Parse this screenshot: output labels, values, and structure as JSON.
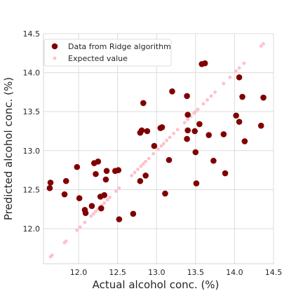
{
  "chart_data": {
    "type": "scatter",
    "title": "",
    "xlabel": "Actual alcohol conc. (%)",
    "ylabel": "Predicted alcohol conc. (%)",
    "xlim": [
      11.55,
      14.5
    ],
    "ylim": [
      11.55,
      14.5
    ],
    "xticks": [
      12.0,
      12.5,
      13.0,
      13.5,
      14.0,
      14.5
    ],
    "yticks": [
      12.0,
      12.5,
      13.0,
      13.5,
      14.0,
      14.5
    ],
    "xtick_labels": [
      "12.0",
      "12.5",
      "13.0",
      "13.5",
      "14.0",
      "14.5"
    ],
    "ytick_labels": [
      "12.0",
      "12.5",
      "13.0",
      "13.5",
      "14.0",
      "14.5"
    ],
    "grid": true,
    "legend_position": "top-left",
    "series": [
      {
        "name": "Data from Ridge algorithm",
        "color": "#800000",
        "marker": "circle-large",
        "points": [
          [
            11.63,
            12.52
          ],
          [
            11.64,
            12.59
          ],
          [
            11.82,
            12.44
          ],
          [
            11.84,
            12.61
          ],
          [
            11.98,
            12.79
          ],
          [
            12.01,
            12.39
          ],
          [
            12.08,
            12.24
          ],
          [
            12.09,
            12.2
          ],
          [
            12.17,
            12.29
          ],
          [
            12.2,
            12.84
          ],
          [
            12.22,
            12.7
          ],
          [
            12.25,
            12.86
          ],
          [
            12.28,
            12.41
          ],
          [
            12.29,
            12.26
          ],
          [
            12.33,
            12.43
          ],
          [
            12.35,
            12.63
          ],
          [
            12.36,
            12.74
          ],
          [
            12.47,
            12.74
          ],
          [
            12.51,
            12.75
          ],
          [
            12.52,
            12.12
          ],
          [
            12.7,
            12.19
          ],
          [
            12.79,
            12.61
          ],
          [
            12.79,
            13.23
          ],
          [
            12.81,
            13.26
          ],
          [
            12.83,
            13.61
          ],
          [
            12.86,
            12.68
          ],
          [
            12.88,
            13.25
          ],
          [
            12.97,
            13.06
          ],
          [
            13.05,
            13.29
          ],
          [
            13.07,
            13.3
          ],
          [
            13.11,
            12.45
          ],
          [
            13.16,
            12.88
          ],
          [
            13.2,
            13.76
          ],
          [
            13.39,
            13.7
          ],
          [
            13.39,
            13.15
          ],
          [
            13.4,
            13.46
          ],
          [
            13.4,
            13.26
          ],
          [
            13.49,
            13.25
          ],
          [
            13.5,
            12.98
          ],
          [
            13.51,
            12.58
          ],
          [
            13.55,
            13.34
          ],
          [
            13.58,
            14.11
          ],
          [
            13.62,
            14.12
          ],
          [
            13.67,
            13.2
          ],
          [
            13.73,
            12.87
          ],
          [
            13.86,
            13.21
          ],
          [
            13.88,
            12.71
          ],
          [
            14.02,
            13.45
          ],
          [
            14.06,
            13.94
          ],
          [
            14.06,
            13.37
          ],
          [
            14.1,
            13.69
          ],
          [
            14.13,
            13.12
          ],
          [
            14.34,
            13.32
          ],
          [
            14.37,
            13.68
          ]
        ]
      },
      {
        "name": "Expected value",
        "color": "#ffc0cb",
        "marker": "circle-small",
        "points": [
          [
            11.64,
            11.64
          ],
          [
            11.66,
            11.66
          ],
          [
            11.82,
            11.82
          ],
          [
            11.84,
            11.84
          ],
          [
            11.98,
            11.98
          ],
          [
            12.02,
            12.02
          ],
          [
            12.08,
            12.08
          ],
          [
            12.16,
            12.16
          ],
          [
            12.19,
            12.19
          ],
          [
            12.22,
            12.22
          ],
          [
            12.25,
            12.25
          ],
          [
            12.28,
            12.28
          ],
          [
            12.3,
            12.3
          ],
          [
            12.33,
            12.33
          ],
          [
            12.37,
            12.37
          ],
          [
            12.4,
            12.4
          ],
          [
            12.48,
            12.48
          ],
          [
            12.52,
            12.52
          ],
          [
            12.68,
            12.68
          ],
          [
            12.72,
            12.72
          ],
          [
            12.76,
            12.76
          ],
          [
            12.8,
            12.8
          ],
          [
            12.83,
            12.83
          ],
          [
            12.86,
            12.86
          ],
          [
            12.9,
            12.9
          ],
          [
            12.96,
            12.96
          ],
          [
            13.02,
            13.02
          ],
          [
            13.06,
            13.06
          ],
          [
            13.09,
            13.09
          ],
          [
            13.13,
            13.13
          ],
          [
            13.17,
            13.17
          ],
          [
            13.22,
            13.22
          ],
          [
            13.27,
            13.27
          ],
          [
            13.36,
            13.36
          ],
          [
            13.4,
            13.4
          ],
          [
            13.44,
            13.44
          ],
          [
            13.48,
            13.48
          ],
          [
            13.5,
            13.5
          ],
          [
            13.53,
            13.53
          ],
          [
            13.6,
            13.6
          ],
          [
            13.65,
            13.65
          ],
          [
            13.7,
            13.7
          ],
          [
            13.75,
            13.75
          ],
          [
            13.86,
            13.86
          ],
          [
            13.94,
            13.94
          ],
          [
            14.02,
            14.02
          ],
          [
            14.06,
            14.06
          ],
          [
            14.12,
            14.12
          ],
          [
            14.34,
            14.34
          ],
          [
            14.37,
            14.37
          ]
        ]
      }
    ]
  }
}
